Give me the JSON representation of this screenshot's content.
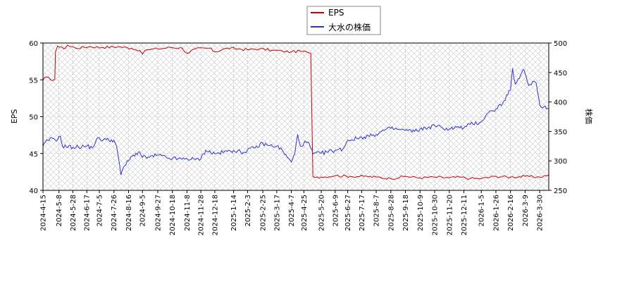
{
  "chart_data": {
    "type": "line",
    "legend": {
      "placement": "top-center",
      "entries": [
        "EPS",
        "大水の株価"
      ]
    },
    "grid": true,
    "hatched_background": true,
    "colors": {
      "eps": "#cc0000",
      "price": "#3333cc",
      "grid": "#bbbbbb",
      "hatch": "#cccccc"
    },
    "xlabel": "",
    "ylabel_left": "EPS",
    "ylabel_right": "株価",
    "x_range": [
      "2024-04-15",
      "2026-04-12"
    ],
    "ylim_left": [
      40,
      60
    ],
    "ylim_right": [
      250,
      500
    ],
    "left_ticks": [
      "40",
      "45",
      "50",
      "55",
      "60"
    ],
    "right_ticks": [
      "250",
      "300",
      "350",
      "400",
      "450",
      "500"
    ],
    "x_tick_labels": [
      "2024-4-15",
      "2024-5-8",
      "2024-5-28",
      "2024-6-17",
      "2024-7-5",
      "2024-7-26",
      "2024-8-16",
      "2024-9-5",
      "2024-9-27",
      "2024-10-18",
      "2024-11-8",
      "2024-11-28",
      "2024-12-18",
      "2025-1-14",
      "2025-2-3",
      "2025-2-25",
      "2025-3-17",
      "2025-4-7",
      "2025-4-25",
      "2025-5-20",
      "2025-6-9",
      "2025-6-27",
      "2025-7-17",
      "2025-8-7",
      "2025-8-28",
      "2025-9-18",
      "2025-10-9",
      "2025-10-30",
      "2025-11-20",
      "2025-12-11",
      "2026-1-5",
      "2026-1-26",
      "2026-2-16",
      "2026-3-9",
      "2026-3-30"
    ],
    "series": [
      {
        "name": "EPS",
        "axis": "left",
        "points": [
          [
            "2024-04-15",
            55.0
          ],
          [
            "2024-04-20",
            55.4
          ],
          [
            "2024-04-26",
            55.0
          ],
          [
            "2024-05-02",
            55.1
          ],
          [
            "2024-05-03",
            58.8
          ],
          [
            "2024-05-06",
            59.6
          ],
          [
            "2024-05-15",
            59.2
          ],
          [
            "2024-05-20",
            59.7
          ],
          [
            "2024-06-01",
            59.3
          ],
          [
            "2024-06-20",
            59.5
          ],
          [
            "2024-07-10",
            59.4
          ],
          [
            "2024-08-01",
            59.5
          ],
          [
            "2024-08-20",
            59.3
          ],
          [
            "2024-09-01",
            59.0
          ],
          [
            "2024-09-05",
            58.5
          ],
          [
            "2024-09-12",
            59.1
          ],
          [
            "2024-09-27",
            59.2
          ],
          [
            "2024-10-15",
            59.4
          ],
          [
            "2024-11-01",
            59.3
          ],
          [
            "2024-11-08",
            58.6
          ],
          [
            "2024-11-20",
            59.2
          ],
          [
            "2024-12-10",
            59.3
          ],
          [
            "2024-12-18",
            58.8
          ],
          [
            "2025-01-05",
            59.3
          ],
          [
            "2025-01-20",
            59.2
          ],
          [
            "2025-02-03",
            59.1
          ],
          [
            "2025-02-20",
            59.2
          ],
          [
            "2025-03-10",
            59.0
          ],
          [
            "2025-03-25",
            58.9
          ],
          [
            "2025-04-07",
            58.8
          ],
          [
            "2025-04-20",
            58.9
          ],
          [
            "2025-05-01",
            58.7
          ],
          [
            "2025-05-05",
            58.6
          ],
          [
            "2025-05-08",
            41.9
          ],
          [
            "2025-05-20",
            41.8
          ],
          [
            "2025-06-09",
            42.0
          ],
          [
            "2025-07-01",
            41.9
          ],
          [
            "2025-07-20",
            41.9
          ],
          [
            "2025-08-07",
            41.8
          ],
          [
            "2025-08-28",
            41.6
          ],
          [
            "2025-09-18",
            41.9
          ],
          [
            "2025-10-09",
            41.7
          ],
          [
            "2025-10-30",
            41.8
          ],
          [
            "2025-11-20",
            41.7
          ],
          [
            "2025-12-05",
            41.8
          ],
          [
            "2025-12-20",
            41.6
          ],
          [
            "2026-01-05",
            41.6
          ],
          [
            "2026-01-26",
            41.9
          ],
          [
            "2026-02-16",
            41.8
          ],
          [
            "2026-03-09",
            41.9
          ],
          [
            "2026-03-30",
            41.8
          ],
          [
            "2026-04-12",
            42.1
          ]
        ]
      },
      {
        "name": "大水の株価",
        "axis": "right",
        "points": [
          [
            "2024-04-15",
            325
          ],
          [
            "2024-04-22",
            335
          ],
          [
            "2024-04-29",
            338
          ],
          [
            "2024-05-06",
            336
          ],
          [
            "2024-05-10",
            342
          ],
          [
            "2024-05-13",
            325
          ],
          [
            "2024-05-28",
            323
          ],
          [
            "2024-06-17",
            325
          ],
          [
            "2024-06-25",
            322
          ],
          [
            "2024-07-01",
            337
          ],
          [
            "2024-07-15",
            336
          ],
          [
            "2024-07-26",
            335
          ],
          [
            "2024-07-30",
            324
          ],
          [
            "2024-08-05",
            276
          ],
          [
            "2024-08-09",
            290
          ],
          [
            "2024-08-16",
            300
          ],
          [
            "2024-08-23",
            310
          ],
          [
            "2024-09-01",
            315
          ],
          [
            "2024-09-05",
            306
          ],
          [
            "2024-09-15",
            306
          ],
          [
            "2024-09-27",
            310
          ],
          [
            "2024-10-10",
            305
          ],
          [
            "2024-10-18",
            304
          ],
          [
            "2024-11-01",
            303
          ],
          [
            "2024-11-08",
            304
          ],
          [
            "2024-11-20",
            302
          ],
          [
            "2024-11-28",
            304
          ],
          [
            "2024-12-05",
            318
          ],
          [
            "2024-12-18",
            312
          ],
          [
            "2025-01-05",
            316
          ],
          [
            "2025-01-14",
            318
          ],
          [
            "2025-01-28",
            314
          ],
          [
            "2025-02-03",
            319
          ],
          [
            "2025-02-14",
            322
          ],
          [
            "2025-02-25",
            330
          ],
          [
            "2025-03-05",
            326
          ],
          [
            "2025-03-17",
            325
          ],
          [
            "2025-03-25",
            318
          ],
          [
            "2025-04-01",
            306
          ],
          [
            "2025-04-07",
            298
          ],
          [
            "2025-04-12",
            312
          ],
          [
            "2025-04-16",
            345
          ],
          [
            "2025-04-20",
            325
          ],
          [
            "2025-04-25",
            330
          ],
          [
            "2025-05-01",
            332
          ],
          [
            "2025-05-08",
            312
          ],
          [
            "2025-05-20",
            313
          ],
          [
            "2025-06-09",
            318
          ],
          [
            "2025-06-20",
            320
          ],
          [
            "2025-06-27",
            335
          ],
          [
            "2025-07-10",
            338
          ],
          [
            "2025-07-17",
            340
          ],
          [
            "2025-08-01",
            343
          ],
          [
            "2025-08-07",
            345
          ],
          [
            "2025-08-20",
            353
          ],
          [
            "2025-08-28",
            355
          ],
          [
            "2025-09-10",
            353
          ],
          [
            "2025-09-18",
            352
          ],
          [
            "2025-10-01",
            350
          ],
          [
            "2025-10-09",
            354
          ],
          [
            "2025-10-20",
            356
          ],
          [
            "2025-10-30",
            360
          ],
          [
            "2025-11-10",
            356
          ],
          [
            "2025-11-20",
            354
          ],
          [
            "2025-12-01",
            357
          ],
          [
            "2025-12-11",
            356
          ],
          [
            "2025-12-20",
            362
          ],
          [
            "2026-01-05",
            366
          ],
          [
            "2026-01-12",
            378
          ],
          [
            "2026-01-20",
            385
          ],
          [
            "2026-01-26",
            388
          ],
          [
            "2026-02-05",
            398
          ],
          [
            "2026-02-12",
            412
          ],
          [
            "2026-02-16",
            420
          ],
          [
            "2026-02-19",
            457
          ],
          [
            "2026-02-23",
            430
          ],
          [
            "2026-03-01",
            440
          ],
          [
            "2026-03-06",
            455
          ],
          [
            "2026-03-09",
            448
          ],
          [
            "2026-03-14",
            428
          ],
          [
            "2026-03-20",
            435
          ],
          [
            "2026-03-25",
            432
          ],
          [
            "2026-03-30",
            395
          ],
          [
            "2026-04-05",
            392
          ],
          [
            "2026-04-12",
            388
          ]
        ]
      }
    ]
  }
}
